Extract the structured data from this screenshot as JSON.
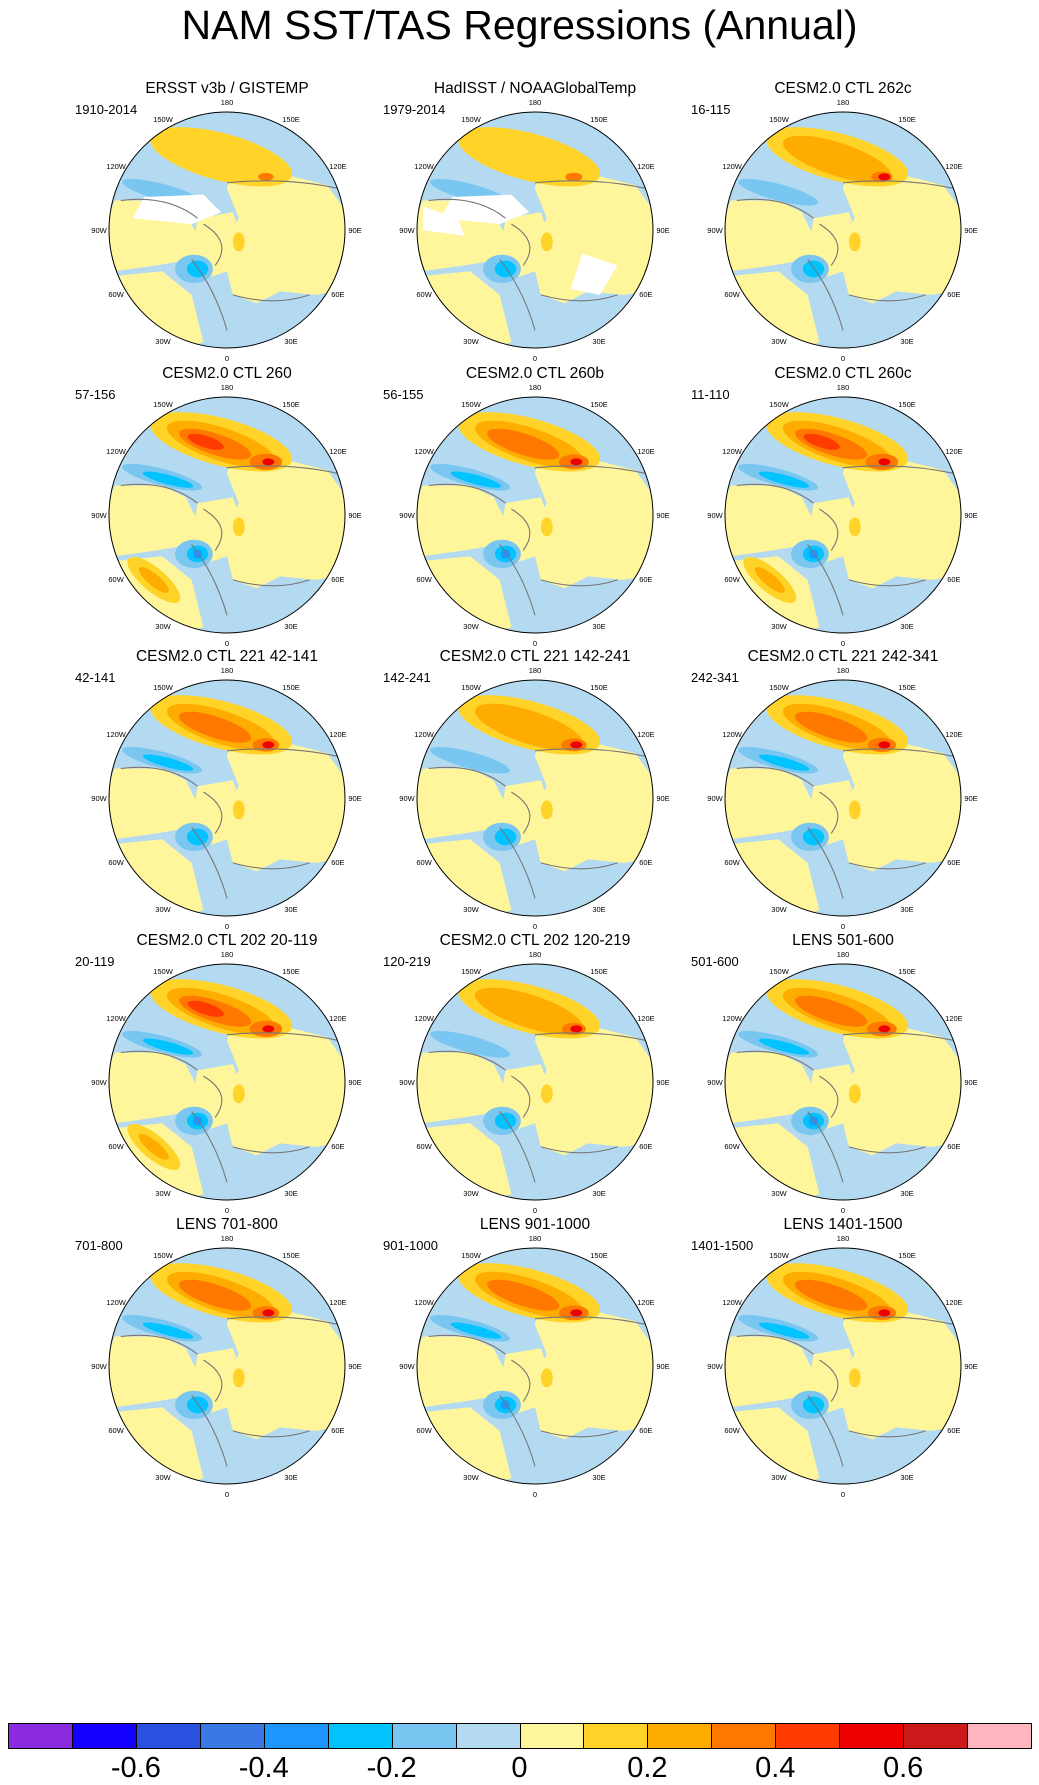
{
  "title": "NAM SST/TAS Regressions (Annual)",
  "longitude_labels": [
    "180",
    "150E",
    "120E",
    "90E",
    "60E",
    "30E",
    "0",
    "30W",
    "60W",
    "90W",
    "120W",
    "150W"
  ],
  "panels": [
    {
      "title": "ERSST v3b / GISTEMP",
      "period": "1910-2014",
      "style": "obs1",
      "amp": 0.55
    },
    {
      "title": "HadISST / NOAAGlobalTemp",
      "period": "1979-2014",
      "style": "obs2",
      "amp": 0.6
    },
    {
      "title": "CESM2.0 CTL 262c",
      "period": "16-115",
      "style": "model",
      "amp": 0.75
    },
    {
      "title": "CESM2.0 CTL 260",
      "period": "57-156",
      "style": "model",
      "amp": 1.15
    },
    {
      "title": "CESM2.0 CTL 260b",
      "period": "56-155",
      "style": "model",
      "amp": 1.05
    },
    {
      "title": "CESM2.0 CTL 260c",
      "period": "11-110",
      "style": "model",
      "amp": 1.15
    },
    {
      "title": "CESM2.0 CTL 221 42-141",
      "period": "42-141",
      "style": "model",
      "amp": 0.95
    },
    {
      "title": "CESM2.0 CTL 221 142-241",
      "period": "142-241",
      "style": "model",
      "amp": 0.9
    },
    {
      "title": "CESM2.0 CTL 221 242-341",
      "period": "242-341",
      "style": "model",
      "amp": 1.0
    },
    {
      "title": "CESM2.0 CTL 202 20-119",
      "period": "20-119",
      "style": "model",
      "amp": 1.15
    },
    {
      "title": "CESM2.0 CTL 202 120-219",
      "period": "120-219",
      "style": "model",
      "amp": 0.85
    },
    {
      "title": "LENS 501-600",
      "period": "501-600",
      "style": "model",
      "amp": 1.05
    },
    {
      "title": "LENS 701-800",
      "period": "701-800",
      "style": "model",
      "amp": 0.95
    },
    {
      "title": "LENS 901-1000",
      "period": "901-1000",
      "style": "model",
      "amp": 1.05
    },
    {
      "title": "LENS 1401-1500",
      "period": "1401-1500",
      "style": "model",
      "amp": 1.0
    }
  ],
  "colorbar": {
    "colors": [
      "#8a2be2",
      "#1400ff",
      "#2a50e0",
      "#3a78e6",
      "#1e96ff",
      "#00c3ff",
      "#79c7f0",
      "#b4daf2",
      "#fff59a",
      "#ffd327",
      "#ffac00",
      "#ff7800",
      "#ff3b00",
      "#ee0000",
      "#cc1a1a",
      "#ffb6c1"
    ],
    "labels": [
      "-0.6",
      "-0.4",
      "-0.2",
      "0",
      "0.2",
      "0.4",
      "0.6"
    ],
    "label_values": [
      -0.6,
      -0.4,
      -0.2,
      0,
      0.2,
      0.4,
      0.6
    ],
    "bounds": [
      -0.8,
      0.8
    ]
  }
}
